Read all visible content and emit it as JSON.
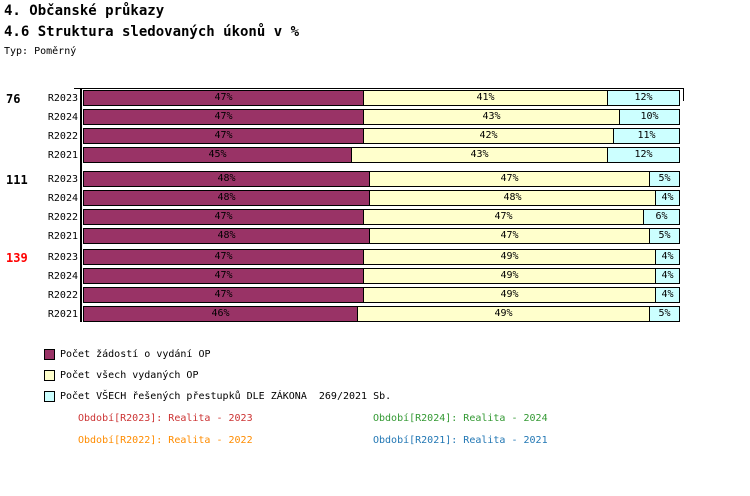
{
  "header": {
    "title1": "4. Občanské průkazy",
    "title2": "4.6 Struktura sledovaných úkonů v %",
    "type_label": "Typ: Poměrný"
  },
  "chart_data": {
    "type": "bar",
    "orientation": "horizontal-stacked",
    "unit": "%",
    "xlim": [
      0,
      100
    ],
    "value_suffix": "%",
    "series": [
      {
        "name": "Počet žádostí o vydání OP",
        "color": "#993366"
      },
      {
        "name": "Počet všech vydaných OP",
        "color": "#FFFFCC"
      },
      {
        "name": "Počet VŠECH řešených přestupků DLE ZÁKONA  269/2021 Sb.",
        "color": "#CCFFFF"
      }
    ],
    "groups": [
      {
        "label": "76",
        "label_color": "#000000",
        "rows": [
          {
            "period": "R2023",
            "values": [
              47,
              41,
              12
            ]
          },
          {
            "period": "R2024",
            "values": [
              47,
              43,
              10
            ]
          },
          {
            "period": "R2022",
            "values": [
              47,
              42,
              11
            ]
          },
          {
            "period": "R2021",
            "values": [
              45,
              43,
              12
            ]
          }
        ]
      },
      {
        "label": "111",
        "label_color": "#000000",
        "rows": [
          {
            "period": "R2023",
            "values": [
              48,
              47,
              5
            ]
          },
          {
            "period": "R2024",
            "values": [
              48,
              48,
              4
            ]
          },
          {
            "period": "R2022",
            "values": [
              47,
              47,
              6
            ]
          },
          {
            "period": "R2021",
            "values": [
              48,
              47,
              5
            ]
          }
        ]
      },
      {
        "label": "139",
        "label_color": "#FF0000",
        "rows": [
          {
            "period": "R2023",
            "values": [
              47,
              49,
              4
            ]
          },
          {
            "period": "R2024",
            "values": [
              47,
              49,
              4
            ]
          },
          {
            "period": "R2022",
            "values": [
              47,
              49,
              4
            ]
          },
          {
            "period": "R2021",
            "values": [
              46,
              49,
              5
            ]
          }
        ]
      }
    ]
  },
  "footer": {
    "items": [
      {
        "text": "Období[R2023]: Realita - 2023",
        "color": "#CC3333"
      },
      {
        "text": "Období[R2024]: Realita - 2024",
        "color": "#339933"
      },
      {
        "text": "Období[R2022]: Realita - 2022",
        "color": "#FF8C00"
      },
      {
        "text": "Období[R2021]: Realita - 2021",
        "color": "#2277B4"
      }
    ]
  }
}
